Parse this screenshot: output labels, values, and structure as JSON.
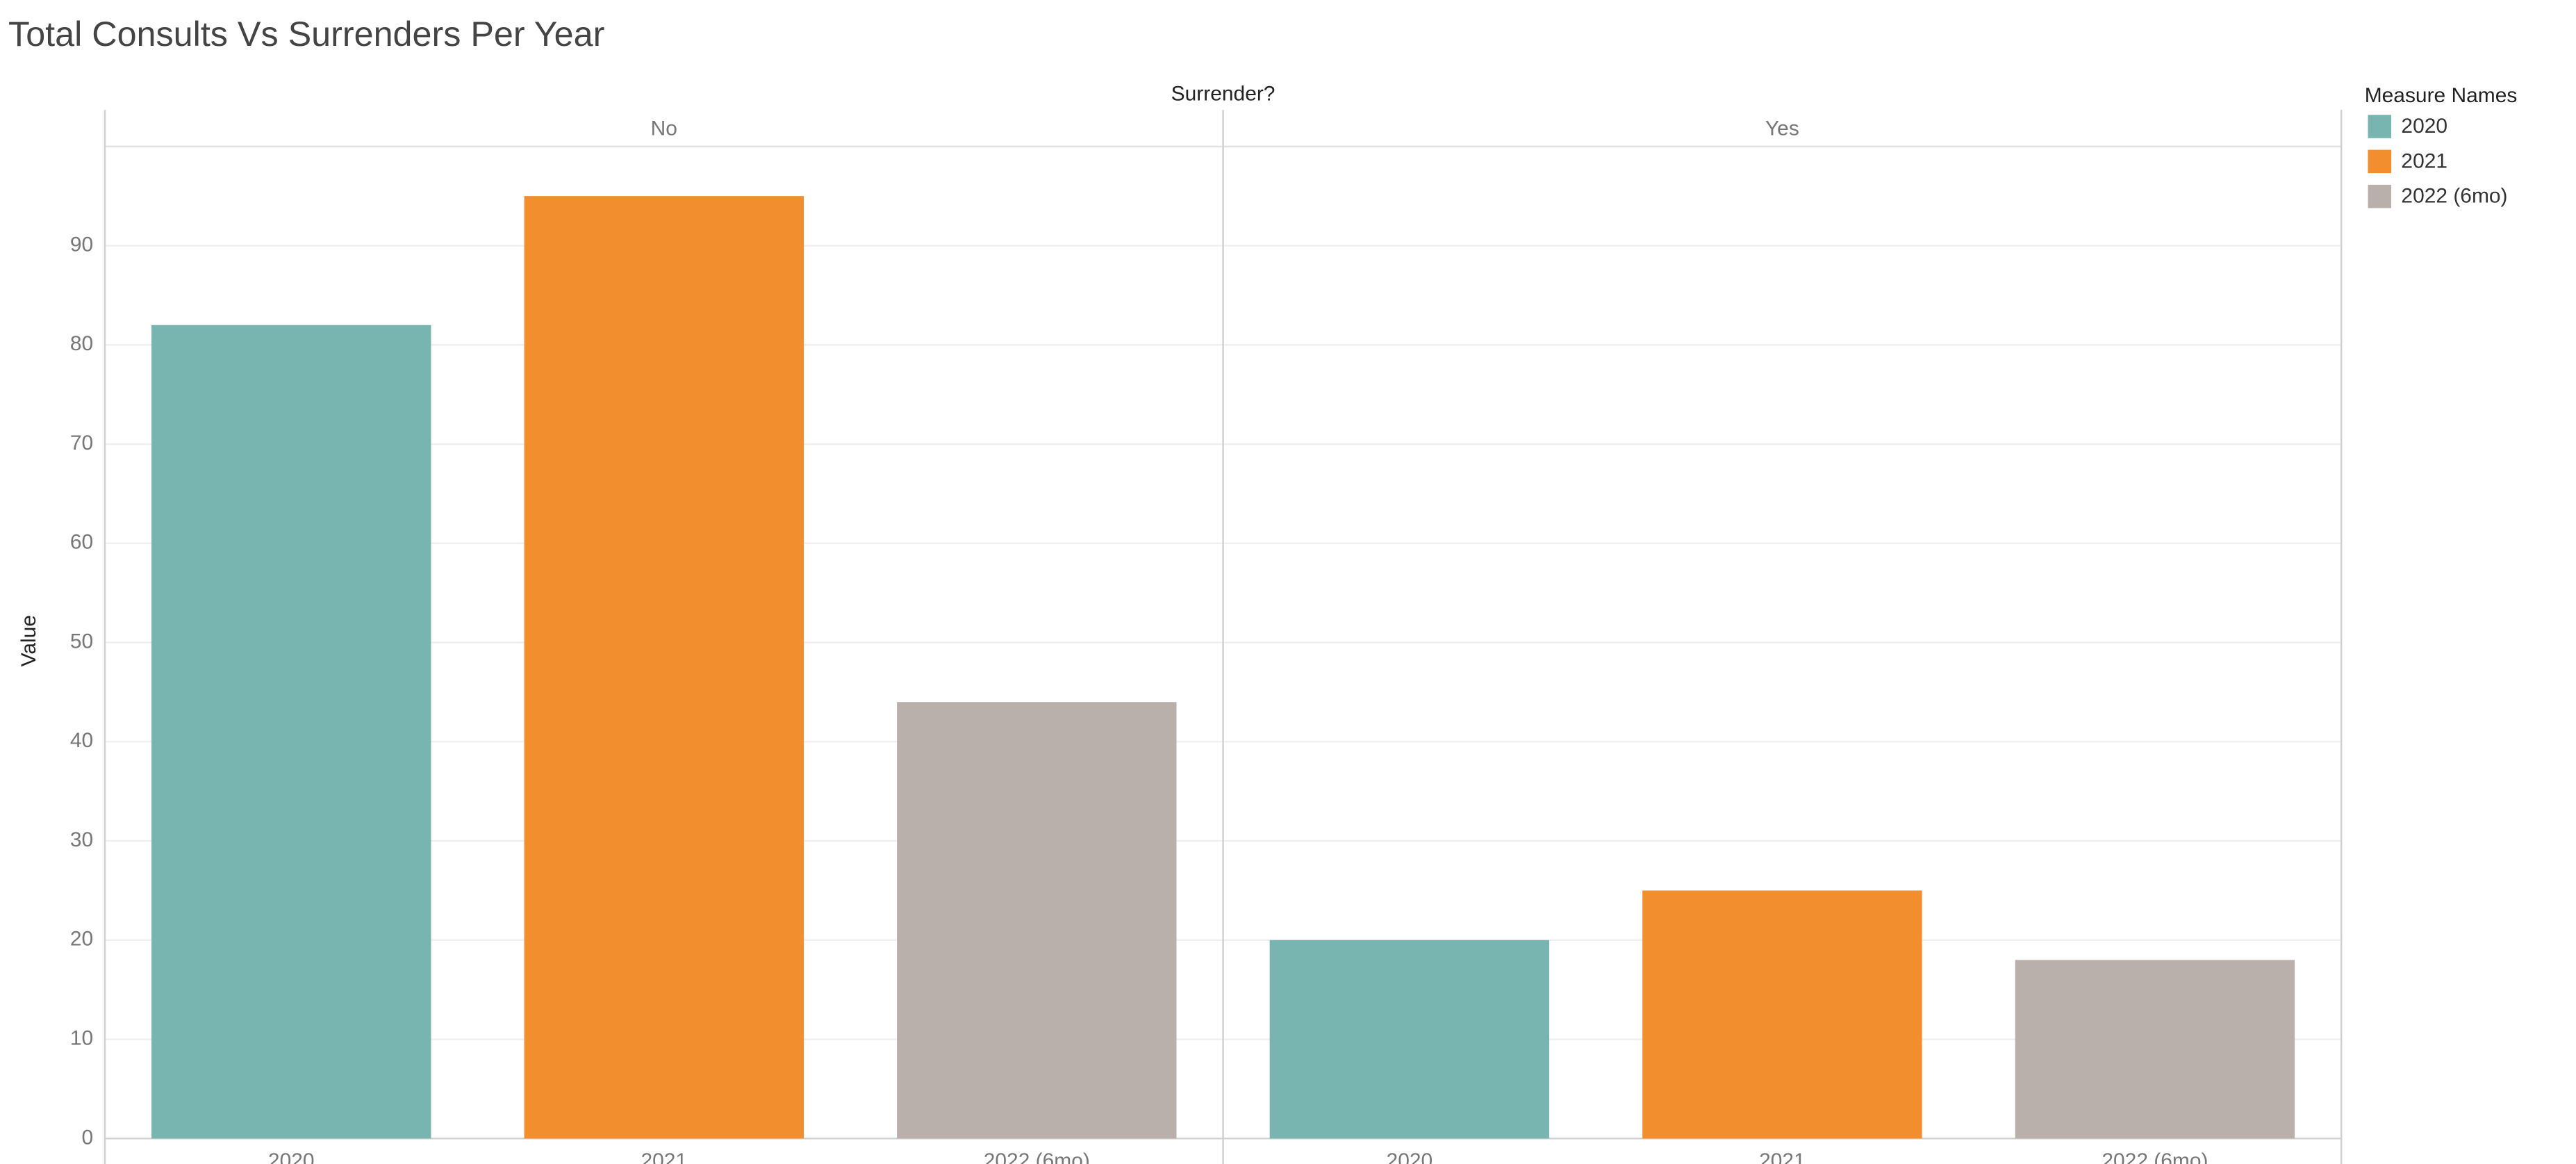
{
  "chart_data": {
    "type": "bar",
    "title": "Total Consults Vs Surrenders Per Year",
    "facet_title": "Surrender?",
    "facets": [
      "No",
      "Yes"
    ],
    "y_label": "Value",
    "legend_title": "Measure Names",
    "series": [
      {
        "name": "2020",
        "color": "#79b5b0",
        "values": [
          82,
          20
        ]
      },
      {
        "name": "2021",
        "color": "#f28e2d",
        "values": [
          95,
          25
        ]
      },
      {
        "name": "2022 (6mo)",
        "color": "#bab0ab",
        "values": [
          44,
          18
        ]
      }
    ],
    "ylim": [
      0,
      100
    ],
    "yticks": [
      0,
      10,
      20,
      30,
      40,
      50,
      60,
      70,
      80,
      90
    ],
    "grid": true,
    "legend": "right"
  }
}
